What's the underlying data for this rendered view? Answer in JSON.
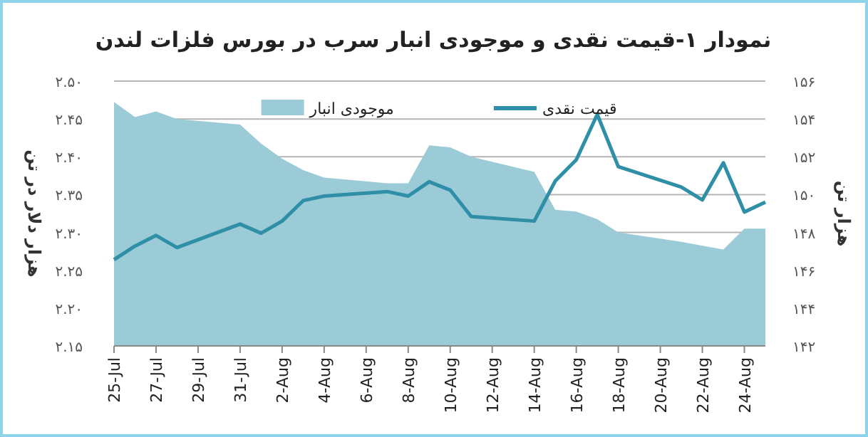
{
  "chart_data": {
    "type": "line",
    "title": "نمودار ۱-قیمت نقدی و موجودی انبار سرب در بورس فلزات لندن",
    "ylabel": "هزار دلار در تن",
    "y2label": "هزار تن",
    "legend": "top",
    "grid": "y",
    "series": [
      {
        "name": "موجودی انبار",
        "type": "area",
        "axis": "y2",
        "color": "#9ccbd8",
        "x": [
          "--07-25",
          "--07-26",
          "--07-27",
          "--07-28",
          "--07-31",
          "--08-01",
          "--08-02",
          "--08-03",
          "--08-04",
          "--08-07",
          "--08-08",
          "--08-09",
          "--08-10",
          "--08-11",
          "--08-14",
          "--08-15",
          "--08-16",
          "--08-17",
          "--08-18",
          "--08-21",
          "--08-22",
          "--08-23",
          "--08-24",
          "--08-25"
        ],
        "values": [
          154.9,
          154.1,
          154.4,
          154.0,
          153.7,
          152.7,
          151.9,
          151.3,
          150.9,
          150.6,
          150.6,
          152.6,
          152.5,
          152.0,
          151.2,
          149.2,
          149.1,
          148.7,
          148.0,
          147.5,
          147.3,
          147.1,
          148.2,
          148.2
        ]
      },
      {
        "name": "قیمت نقدی",
        "type": "line",
        "color": "#2e8fa6",
        "x": [
          "--07-25",
          "--07-26",
          "--07-27",
          "--07-28",
          "--07-31",
          "--08-01",
          "--08-02",
          "--08-03",
          "--08-04",
          "--08-07",
          "--08-08",
          "--08-09",
          "--08-10",
          "--08-11",
          "--08-14",
          "--08-15",
          "--08-16",
          "--08-17",
          "--08-18",
          "--08-21",
          "--08-22",
          "--08-23",
          "--08-24",
          "--08-25"
        ],
        "values": [
          2.264,
          2.282,
          2.296,
          2.28,
          2.311,
          2.299,
          2.315,
          2.342,
          2.348,
          2.354,
          2.348,
          2.367,
          2.356,
          2.321,
          2.315,
          2.368,
          2.396,
          2.456,
          2.387,
          2.36,
          2.343,
          2.392,
          2.327,
          2.34
        ]
      }
    ],
    "xlim": [
      "--07-25",
      "--08-25"
    ],
    "xticks": [
      {
        "value": "--07-25",
        "label": "25-Jul"
      },
      {
        "value": "--07-27",
        "label": "27-Jul"
      },
      {
        "value": "--07-29",
        "label": "29-Jul"
      },
      {
        "value": "--07-31",
        "label": "31-Jul"
      },
      {
        "value": "--08-02",
        "label": "2-Aug"
      },
      {
        "value": "--08-04",
        "label": "4-Aug"
      },
      {
        "value": "--08-06",
        "label": "6-Aug"
      },
      {
        "value": "--08-08",
        "label": "8-Aug"
      },
      {
        "value": "--08-10",
        "label": "10-Aug"
      },
      {
        "value": "--08-12",
        "label": "12-Aug"
      },
      {
        "value": "--08-14",
        "label": "14-Aug"
      },
      {
        "value": "--08-16",
        "label": "16-Aug"
      },
      {
        "value": "--08-18",
        "label": "18-Aug"
      },
      {
        "value": "--08-20",
        "label": "20-Aug"
      },
      {
        "value": "--08-22",
        "label": "22-Aug"
      },
      {
        "value": "--08-24",
        "label": "24-Aug"
      }
    ],
    "ylim": [
      2.15,
      2.5
    ],
    "yticks": [
      {
        "value": 2.15,
        "label": "۲.۱۵"
      },
      {
        "value": 2.2,
        "label": "۲.۲۰"
      },
      {
        "value": 2.25,
        "label": "۲.۲۵"
      },
      {
        "value": 2.3,
        "label": "۲.۳۰"
      },
      {
        "value": 2.35,
        "label": "۲.۳۵"
      },
      {
        "value": 2.4,
        "label": "۲.۴۰"
      },
      {
        "value": 2.45,
        "label": "۲.۴۵"
      },
      {
        "value": 2.5,
        "label": "۲.۵۰"
      }
    ],
    "y2lim": [
      142,
      156
    ],
    "y2ticks": [
      {
        "value": 142,
        "label": "۱۴۲"
      },
      {
        "value": 144,
        "label": "۱۴۴"
      },
      {
        "value": 146,
        "label": "۱۴۶"
      },
      {
        "value": 148,
        "label": "۱۴۸"
      },
      {
        "value": 150,
        "label": "۱۵۰"
      },
      {
        "value": 152,
        "label": "۱۵۲"
      },
      {
        "value": 154,
        "label": "۱۵۴"
      },
      {
        "value": 156,
        "label": "۱۵۶"
      }
    ]
  }
}
